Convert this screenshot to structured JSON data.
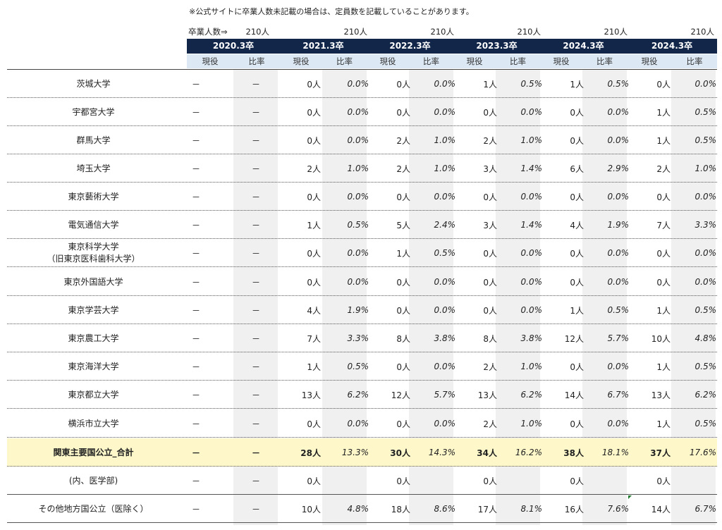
{
  "note": "※公式サイトに卒業人数未記載の場合は、定員数を記載していることがあります。",
  "graduates": {
    "label": "卒業人数⇒",
    "values": [
      "210人",
      "210人",
      "210人",
      "210人",
      "210人",
      "210人"
    ]
  },
  "years": [
    "2020.3卒",
    "2021.3卒",
    "2022.3卒",
    "2023.3卒",
    "2024.3卒",
    "2024.3卒"
  ],
  "subheaders": {
    "current": "現役",
    "rate": "比率"
  },
  "rows": [
    {
      "name": "茨城大学",
      "c2020": "－",
      "r2020": "－",
      "vals": [
        [
          "0人",
          "0.0%"
        ],
        [
          "0人",
          "0.0%"
        ],
        [
          "1人",
          "0.5%"
        ],
        [
          "1人",
          "0.5%"
        ],
        [
          "0人",
          "0.0%"
        ]
      ]
    },
    {
      "name": "宇都宮大学",
      "c2020": "－",
      "r2020": "－",
      "vals": [
        [
          "0人",
          "0.0%"
        ],
        [
          "0人",
          "0.0%"
        ],
        [
          "0人",
          "0.0%"
        ],
        [
          "0人",
          "0.0%"
        ],
        [
          "1人",
          "0.5%"
        ]
      ]
    },
    {
      "name": "群馬大学",
      "c2020": "－",
      "r2020": "－",
      "vals": [
        [
          "0人",
          "0.0%"
        ],
        [
          "2人",
          "1.0%"
        ],
        [
          "2人",
          "1.0%"
        ],
        [
          "0人",
          "0.0%"
        ],
        [
          "1人",
          "0.5%"
        ]
      ]
    },
    {
      "name": "埼玉大学",
      "c2020": "－",
      "r2020": "－",
      "vals": [
        [
          "2人",
          "1.0%"
        ],
        [
          "2人",
          "1.0%"
        ],
        [
          "3人",
          "1.4%"
        ],
        [
          "6人",
          "2.9%"
        ],
        [
          "2人",
          "1.0%"
        ]
      ]
    },
    {
      "name": "東京藝術大学",
      "c2020": "－",
      "r2020": "－",
      "vals": [
        [
          "0人",
          "0.0%"
        ],
        [
          "0人",
          "0.0%"
        ],
        [
          "0人",
          "0.0%"
        ],
        [
          "0人",
          "0.0%"
        ],
        [
          "0人",
          "0.0%"
        ]
      ]
    },
    {
      "name": "電気通信大学",
      "c2020": "－",
      "r2020": "－",
      "vals": [
        [
          "1人",
          "0.5%"
        ],
        [
          "5人",
          "2.4%"
        ],
        [
          "3人",
          "1.4%"
        ],
        [
          "4人",
          "1.9%"
        ],
        [
          "7人",
          "3.3%"
        ]
      ]
    },
    {
      "name": "東京科学大学",
      "name2": "（旧東京医科歯科大学）",
      "c2020": "－",
      "r2020": "－",
      "vals": [
        [
          "0人",
          "0.0%"
        ],
        [
          "1人",
          "0.5%"
        ],
        [
          "0人",
          "0.0%"
        ],
        [
          "0人",
          "0.0%"
        ],
        [
          "0人",
          "0.0%"
        ]
      ]
    },
    {
      "name": "東京外国語大学",
      "c2020": "－",
      "r2020": "－",
      "vals": [
        [
          "0人",
          "0.0%"
        ],
        [
          "0人",
          "0.0%"
        ],
        [
          "0人",
          "0.0%"
        ],
        [
          "0人",
          "0.0%"
        ],
        [
          "0人",
          "0.0%"
        ]
      ]
    },
    {
      "name": "東京学芸大学",
      "c2020": "－",
      "r2020": "－",
      "vals": [
        [
          "4人",
          "1.9%"
        ],
        [
          "0人",
          "0.0%"
        ],
        [
          "0人",
          "0.0%"
        ],
        [
          "1人",
          "0.5%"
        ],
        [
          "1人",
          "0.5%"
        ]
      ]
    },
    {
      "name": "東京農工大学",
      "c2020": "－",
      "r2020": "－",
      "vals": [
        [
          "7人",
          "3.3%"
        ],
        [
          "8人",
          "3.8%"
        ],
        [
          "8人",
          "3.8%"
        ],
        [
          "12人",
          "5.7%"
        ],
        [
          "10人",
          "4.8%"
        ]
      ]
    },
    {
      "name": "東京海洋大学",
      "c2020": "－",
      "r2020": "－",
      "vals": [
        [
          "1人",
          "0.5%"
        ],
        [
          "0人",
          "0.0%"
        ],
        [
          "2人",
          "1.0%"
        ],
        [
          "0人",
          "0.0%"
        ],
        [
          "1人",
          "0.5%"
        ]
      ]
    },
    {
      "name": "東京都立大学",
      "c2020": "－",
      "r2020": "－",
      "vals": [
        [
          "13人",
          "6.2%"
        ],
        [
          "12人",
          "5.7%"
        ],
        [
          "13人",
          "6.2%"
        ],
        [
          "14人",
          "6.7%"
        ],
        [
          "13人",
          "6.2%"
        ]
      ]
    },
    {
      "name": "横浜市立大学",
      "c2020": "－",
      "r2020": "－",
      "vals": [
        [
          "0人",
          "0.0%"
        ],
        [
          "0人",
          "0.0%"
        ],
        [
          "2人",
          "1.0%"
        ],
        [
          "0人",
          "0.0%"
        ],
        [
          "1人",
          "0.5%"
        ]
      ]
    },
    {
      "name": "関東主要国公立_合計",
      "c2020": "－",
      "r2020": "－",
      "vals": [
        [
          "28人",
          "13.3%"
        ],
        [
          "30人",
          "14.3%"
        ],
        [
          "34人",
          "16.2%"
        ],
        [
          "38人",
          "18.1%"
        ],
        [
          "37人",
          "17.6%"
        ]
      ]
    },
    {
      "name": "(内、医学部)",
      "c2020": "－",
      "r2020": "－",
      "vals": [
        [
          "0人",
          ""
        ],
        [
          "0人",
          ""
        ],
        [
          "0人",
          ""
        ],
        [
          "0人",
          ""
        ],
        [
          "0人",
          ""
        ]
      ]
    },
    {
      "name": "その他地方国公立（医除く）",
      "c2020": "－",
      "r2020": "－",
      "vals": [
        [
          "10人",
          "4.8%"
        ],
        [
          "18人",
          "8.6%"
        ],
        [
          "17人",
          "8.1%"
        ],
        [
          "16人",
          "7.6%"
        ],
        [
          "14人",
          "6.7%"
        ]
      ]
    }
  ]
}
